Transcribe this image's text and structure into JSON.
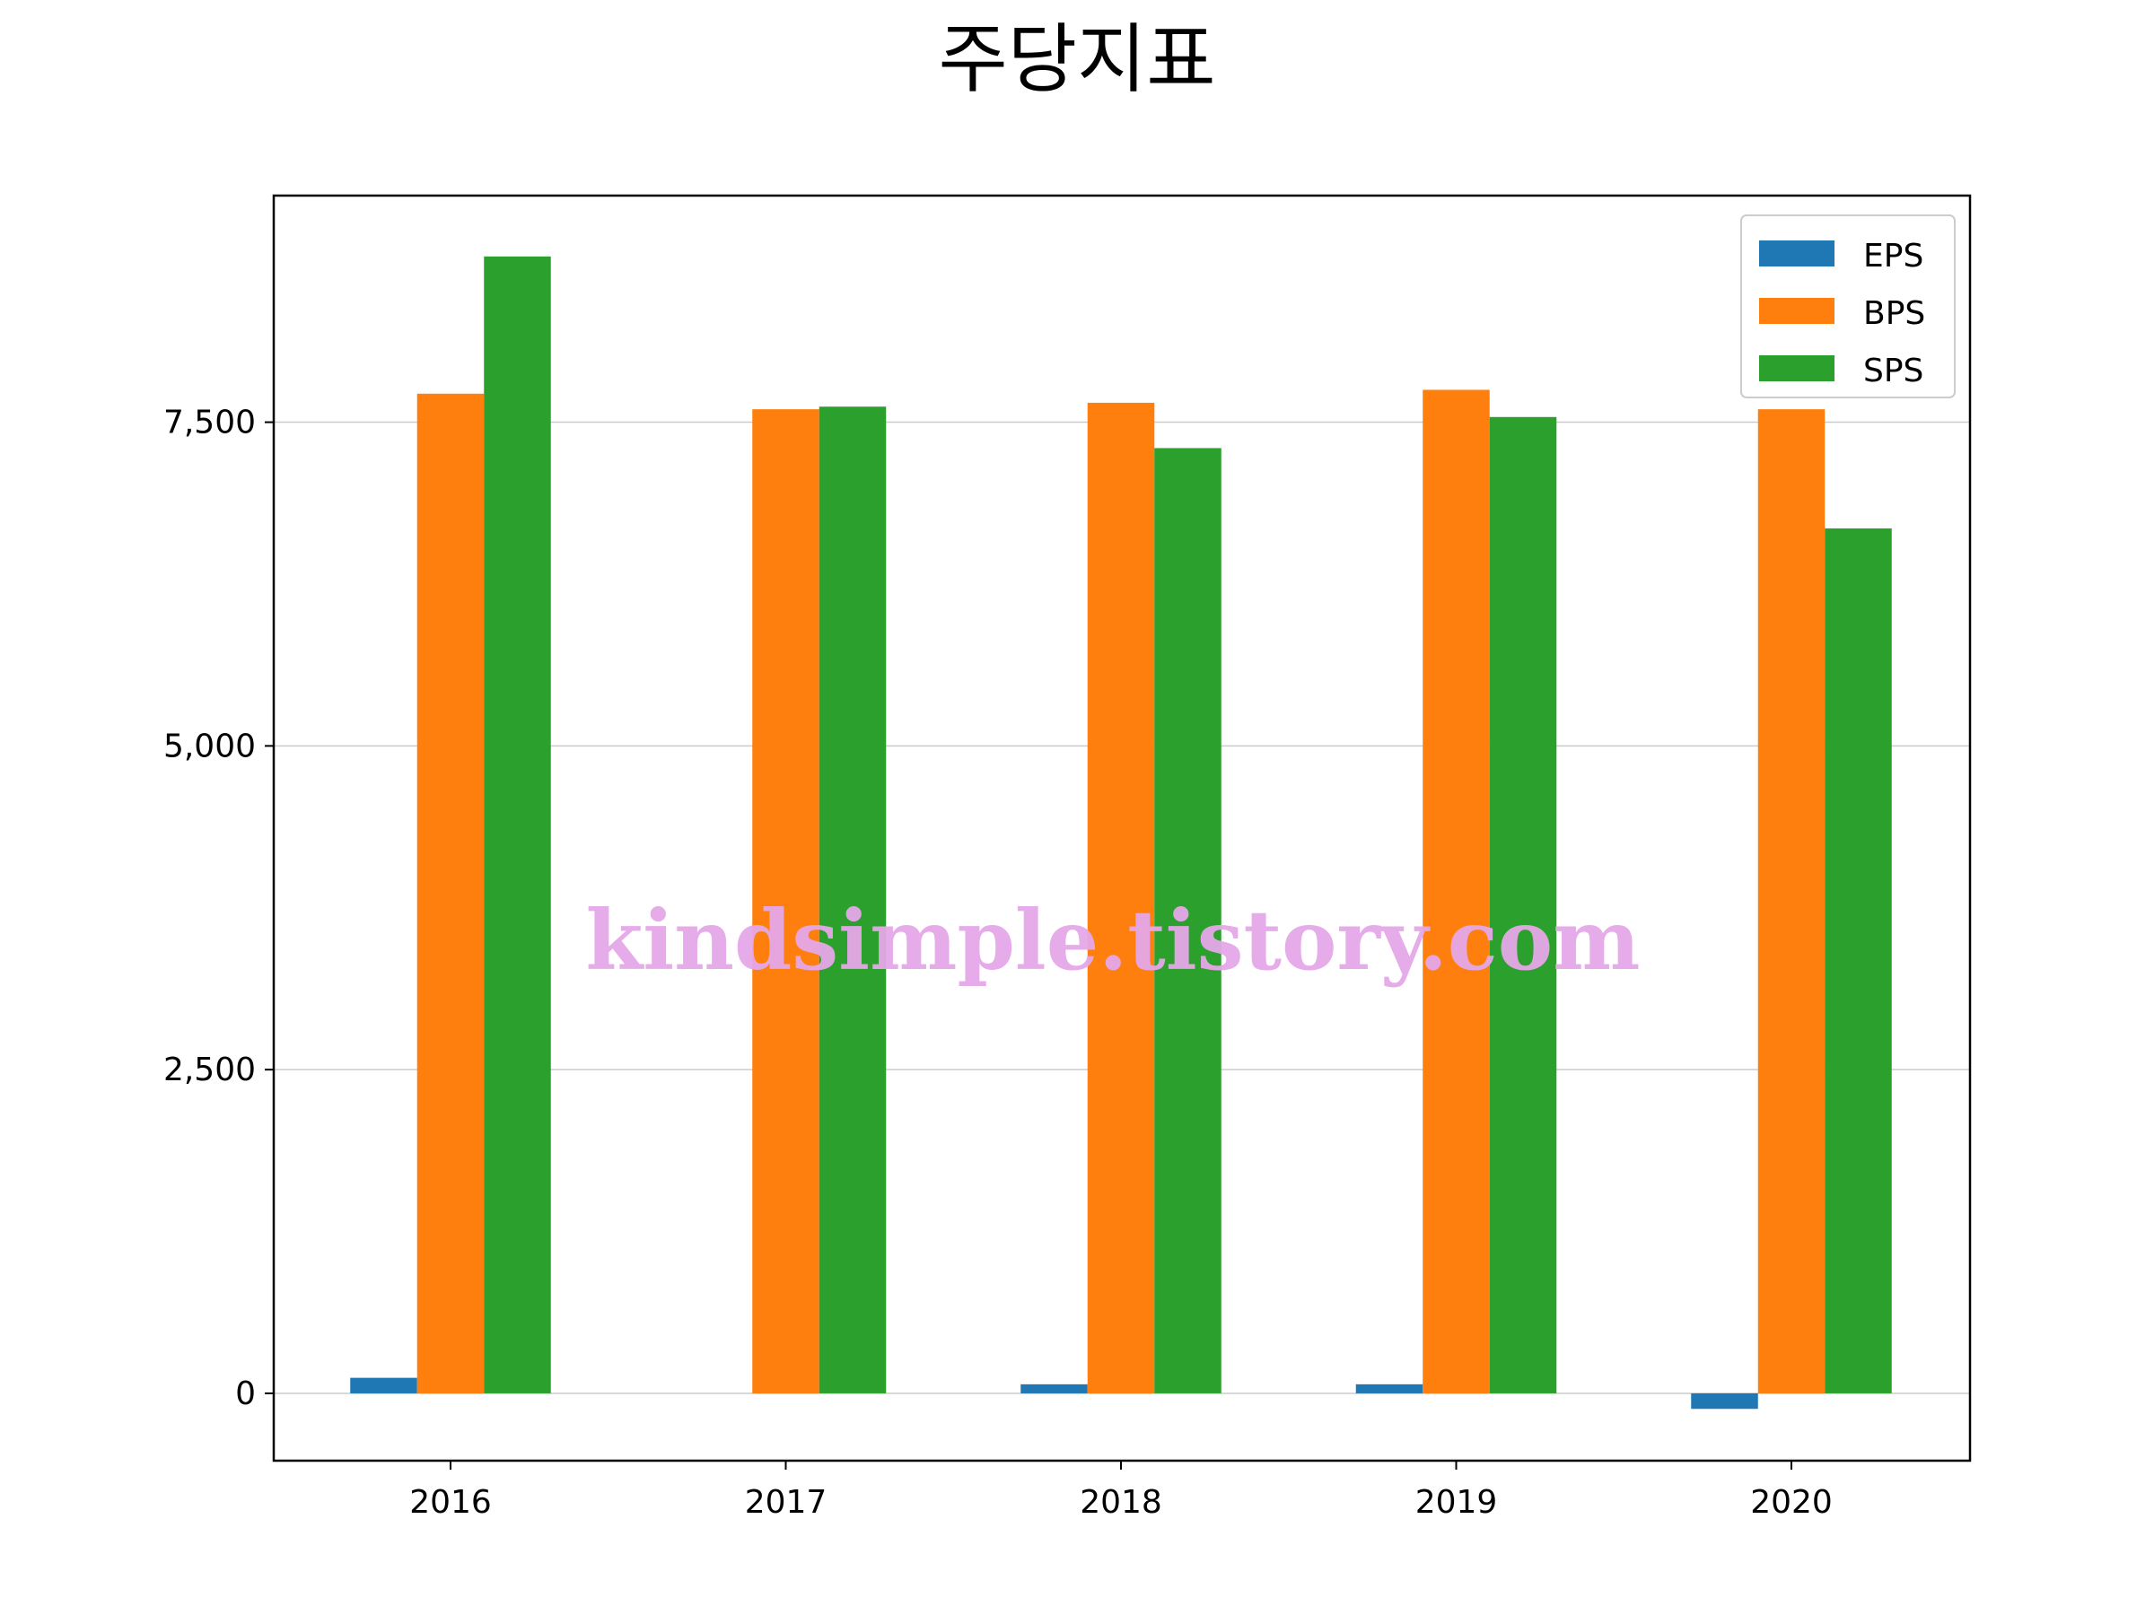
{
  "chart_data": {
    "type": "bar",
    "title": "주당지표",
    "xlabel": "",
    "ylabel": "",
    "categories": [
      "2016",
      "2017",
      "2018",
      "2019",
      "2020"
    ],
    "series": [
      {
        "name": "EPS",
        "color": "#1f77b4",
        "values": [
          120,
          0,
          70,
          70,
          -120
        ]
      },
      {
        "name": "BPS",
        "color": "#ff7f0e",
        "values": [
          7720,
          7600,
          7650,
          7750,
          7600
        ]
      },
      {
        "name": "SPS",
        "color": "#2ca02c",
        "values": [
          8780,
          7620,
          7300,
          7540,
          6680
        ]
      }
    ],
    "ylim": [
      -520,
      9250
    ],
    "yticks": [
      0,
      2500,
      5000,
      7500
    ],
    "ytick_labels": [
      "0",
      "2,500",
      "5,000",
      "7,500"
    ],
    "grid": "horizontal",
    "legend_position": "top-right"
  },
  "watermark": "kindsimple.tistory.com"
}
